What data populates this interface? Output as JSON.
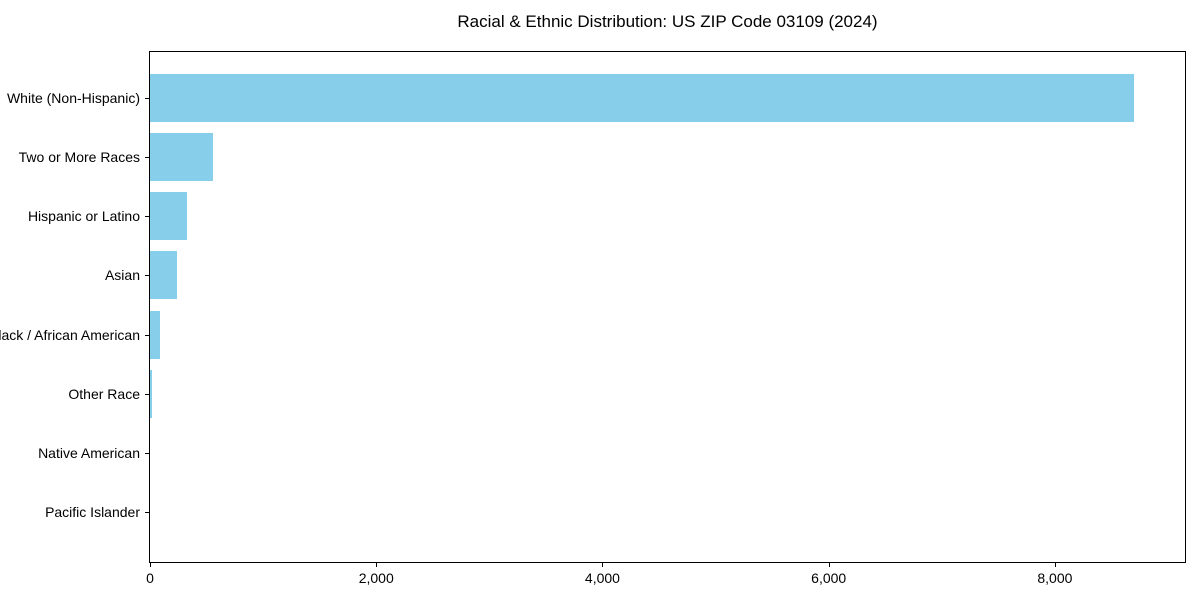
{
  "chart_data": {
    "type": "bar",
    "orientation": "horizontal",
    "title": "Racial & Ethnic Distribution: US ZIP Code 03109 (2024)",
    "categories": [
      "White (Non-Hispanic)",
      "Two or More Races",
      "Hispanic or Latino",
      "Asian",
      "Black / African American",
      "Other Race",
      "Native American",
      "Pacific Islander"
    ],
    "values": [
      8700,
      560,
      325,
      235,
      85,
      22,
      0,
      0
    ],
    "xlabel": "",
    "ylabel": "",
    "xlim": [
      0,
      9150
    ],
    "x_ticks": [
      0,
      2000,
      4000,
      6000,
      8000
    ],
    "x_tick_labels": [
      "0",
      "2,000",
      "4,000",
      "6,000",
      "8,000"
    ],
    "bar_color": "#87CEEB",
    "spine_color": "#000000",
    "text_color": "#000000",
    "grid": false,
    "legend": "none",
    "first_category_position": "top"
  }
}
